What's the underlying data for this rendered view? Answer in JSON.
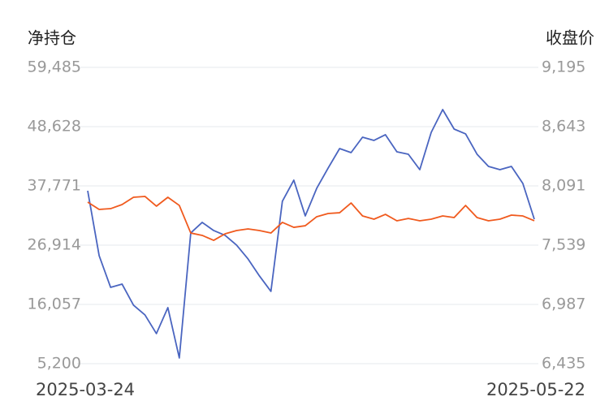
{
  "chart_data": {
    "type": "line",
    "categories": [
      "2025-03-24",
      null,
      null,
      null,
      null,
      null,
      null,
      null,
      null,
      null,
      null,
      null,
      null,
      null,
      null,
      null,
      null,
      null,
      null,
      null,
      null,
      null,
      null,
      null,
      null,
      null,
      null,
      null,
      null,
      null,
      null,
      null,
      null,
      null,
      null,
      null,
      null,
      null,
      null,
      "2025-05-22"
    ],
    "ylim": [
      5200,
      59485
    ],
    "yticks": [
      {
        "value": 5200,
        "label": "5,200"
      },
      {
        "value": 16057,
        "label": "16,057"
      },
      {
        "value": 26914,
        "label": "26,914"
      },
      {
        "value": 37771,
        "label": "37,771"
      },
      {
        "value": 48628,
        "label": "48,628"
      },
      {
        "value": 59485,
        "label": "59,485"
      }
    ],
    "y2lim": [
      6435,
      9195
    ],
    "y2ticks": [
      {
        "value": 6435,
        "label": "6,435"
      },
      {
        "value": 6987,
        "label": "6,987"
      },
      {
        "value": 7539,
        "label": "7,539"
      },
      {
        "value": 8091,
        "label": "8,091"
      },
      {
        "value": 8643,
        "label": "8,643"
      },
      {
        "value": 9195,
        "label": "9,195"
      }
    ],
    "grid": true,
    "series": [
      {
        "name": "净持仓",
        "color": "#4a65c0",
        "values": [
          36883,
          24987,
          19188,
          19783,
          15917,
          14131,
          10711,
          15471,
          6250,
          29150,
          31083,
          29596,
          28704,
          26920,
          24392,
          21270,
          18444,
          34950,
          38816,
          32273,
          37329,
          41047,
          44615,
          43872,
          46697,
          46102,
          47143,
          44020,
          43574,
          40749,
          47589,
          51753,
          48184,
          47292,
          43574,
          41344,
          40749,
          41344,
          38221,
          31678
        ]
      },
      {
        "name": "收盘价",
        "color": "#f05a1e",
        "axis": "y2",
        "values": [
          7940,
          7872,
          7879,
          7917,
          7985,
          7993,
          7902,
          7985,
          7909,
          7652,
          7630,
          7584,
          7645,
          7675,
          7690,
          7675,
          7652,
          7751,
          7705,
          7720,
          7804,
          7834,
          7841,
          7932,
          7811,
          7781,
          7826,
          7766,
          7788,
          7766,
          7781,
          7811,
          7796,
          7909,
          7796,
          7766,
          7781,
          7819,
          7811,
          7766
        ]
      }
    ]
  }
}
